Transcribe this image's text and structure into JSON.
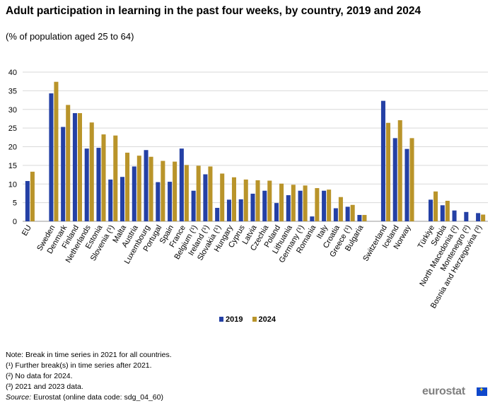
{
  "header": {
    "title": "Adult participation in learning in the past four weeks, by country, 2019 and 2024",
    "subtitle": "(% of population aged 25 to 64)"
  },
  "legend": [
    {
      "label": "2019",
      "color": "#2440a5"
    },
    {
      "label": "2024",
      "color": "#b9942a"
    }
  ],
  "notes": {
    "lines": [
      "Note: Break in time series in 2021 for all countries.",
      "(¹) Further break(s) in time series after 2021.",
      "(²) No data for 2024.",
      "(³) 2021 and 2023 data."
    ],
    "source_label": "Source:",
    "source_text": " Eurostat (online data code: sdg_04_60)"
  },
  "logo": {
    "text": "eurostat",
    "icon": "eu-flag-icon"
  },
  "chart_data": {
    "type": "bar",
    "title": "Adult participation in learning in the past four weeks, by country, 2019 and 2024",
    "subtitle": "(% of population aged 25 to 64)",
    "ylim": [
      0,
      40
    ],
    "yticks": [
      0,
      5,
      10,
      15,
      20,
      25,
      30,
      35,
      40
    ],
    "grid": true,
    "legend_position": "bottom-center",
    "groups": [
      {
        "categories": [
          "EU"
        ]
      },
      {
        "categories": [
          "Sweden",
          "Denmark",
          "Finland",
          "Netherlands",
          "Estonia",
          "Slovenia (¹)",
          "Malta",
          "Austria",
          "Luxembourg",
          "Portugal",
          "Spain",
          "France",
          "Belgium (¹)",
          "Ireland (¹)",
          "Slovakia (¹)",
          "Hungary",
          "Cyprus",
          "Latvia",
          "Czechia",
          "Poland",
          "Lithuania",
          "Germany (¹)",
          "Romania",
          "Italy",
          "Croatia",
          "Greece (¹)",
          "Bulgaria"
        ]
      },
      {
        "categories": [
          "Switzerland",
          "Iceland",
          "Norway"
        ]
      },
      {
        "categories": [
          "Türkiye",
          "Serbia",
          "North Macedonia (²)",
          "Montenegro (²)",
          "Bosnia and Herzegovina (³)"
        ]
      }
    ],
    "series": [
      {
        "name": "2019",
        "color": "#2440a5",
        "values": [
          10.8,
          34.3,
          25.3,
          29.0,
          19.5,
          19.7,
          11.2,
          11.9,
          14.7,
          19.1,
          10.5,
          10.6,
          19.5,
          8.2,
          12.6,
          3.6,
          5.8,
          5.9,
          7.4,
          8.2,
          4.9,
          7.0,
          8.2,
          1.3,
          8.2,
          3.5,
          3.9,
          1.7,
          32.3,
          22.3,
          19.4,
          5.8,
          4.3,
          2.9,
          2.5,
          2.2
        ]
      },
      {
        "name": "2024",
        "color": "#b9942a",
        "values": [
          13.3,
          37.4,
          31.2,
          29.0,
          26.5,
          23.3,
          23.0,
          18.4,
          17.6,
          17.3,
          16.2,
          16.0,
          15.1,
          14.9,
          14.7,
          12.8,
          11.8,
          11.2,
          11.0,
          10.9,
          10.1,
          9.8,
          9.6,
          8.9,
          8.5,
          6.5,
          4.4,
          1.7,
          26.4,
          27.1,
          22.3,
          8.0,
          5.5,
          null,
          null,
          1.8
        ]
      }
    ]
  }
}
